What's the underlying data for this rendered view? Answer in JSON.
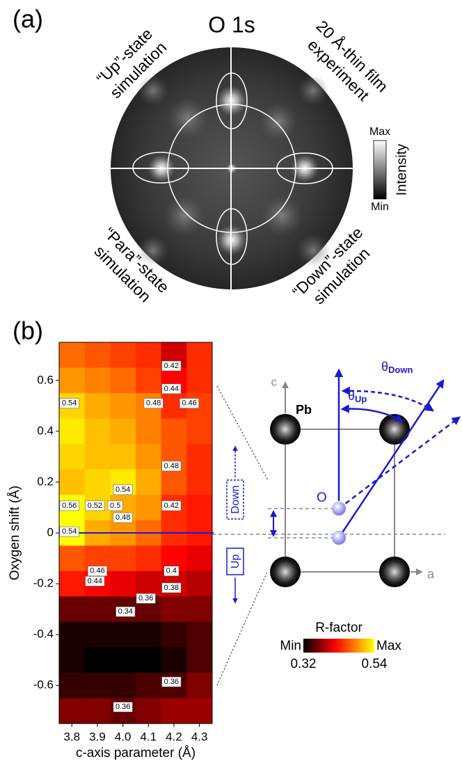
{
  "panel_a": {
    "label": "(a)",
    "title": "O 1s",
    "quadrants": {
      "upper_left": [
        "“Up”-state",
        "simulation"
      ],
      "upper_right": [
        "20 Å-thin film",
        "experiment"
      ],
      "lower_left": [
        "“Para”-state",
        "simulation"
      ],
      "lower_right": [
        "“Down”-state",
        "simulation"
      ]
    },
    "colorbar": {
      "max": "Max",
      "min": "Min",
      "label": "Intensity"
    }
  },
  "chart_data": {
    "type": "heatmap",
    "label": "(b)",
    "xlabel": "c-axis parameter (Å)",
    "ylabel": "Oxygen shift (Å)",
    "x": [
      3.8,
      3.9,
      4.0,
      4.1,
      4.2,
      4.3
    ],
    "y": [
      0.7,
      0.6,
      0.5,
      0.4,
      0.3,
      0.2,
      0.1,
      0,
      -0.1,
      -0.2,
      -0.3,
      -0.4,
      -0.5,
      -0.6,
      -0.7
    ],
    "z": [
      [
        0.47,
        0.46,
        0.45,
        0.44,
        0.4,
        0.44
      ],
      [
        0.49,
        0.48,
        0.47,
        0.45,
        0.42,
        0.44
      ],
      [
        0.52,
        0.5,
        0.49,
        0.48,
        0.44,
        0.45
      ],
      [
        0.53,
        0.51,
        0.5,
        0.48,
        0.46,
        0.45
      ],
      [
        0.52,
        0.51,
        0.51,
        0.49,
        0.46,
        0.44
      ],
      [
        0.51,
        0.52,
        0.53,
        0.5,
        0.46,
        0.44
      ],
      [
        0.54,
        0.52,
        0.5,
        0.49,
        0.44,
        0.43
      ],
      [
        0.54,
        0.5,
        0.49,
        0.47,
        0.44,
        0.43
      ],
      [
        0.46,
        0.45,
        0.45,
        0.44,
        0.42,
        0.41
      ],
      [
        0.43,
        0.42,
        0.41,
        0.4,
        0.4,
        0.39
      ],
      [
        0.36,
        0.36,
        0.36,
        0.36,
        0.37,
        0.37
      ],
      [
        0.33,
        0.33,
        0.33,
        0.33,
        0.34,
        0.35
      ],
      [
        0.33,
        0.32,
        0.32,
        0.32,
        0.33,
        0.35
      ],
      [
        0.34,
        0.34,
        0.34,
        0.35,
        0.35,
        0.37
      ],
      [
        0.37,
        0.37,
        0.36,
        0.37,
        0.38,
        0.38
      ]
    ],
    "xlim": [
      3.75,
      4.35
    ],
    "ylim": [
      -0.75,
      0.75
    ],
    "xticks": [
      3.8,
      3.9,
      {
        "value": 4,
        "label": "4.0"
      },
      4.1,
      4.2,
      4.3
    ],
    "yticks": [
      -0.6,
      -0.4,
      -0.2,
      0,
      0.2,
      0.4,
      0.6
    ],
    "contour_labels": [
      {
        "value": 0.42,
        "x": 4.19,
        "y": 0.657
      },
      {
        "value": 0.44,
        "x": 4.19,
        "y": 0.567
      },
      {
        "value": 0.48,
        "x": 4.12,
        "y": 0.51
      },
      {
        "value": 0.46,
        "x": 4.26,
        "y": 0.51
      },
      {
        "value": 0.54,
        "x": 3.79,
        "y": 0.51
      },
      {
        "value": 0.48,
        "x": 4.19,
        "y": 0.263
      },
      {
        "value": 0.54,
        "x": 4.0,
        "y": 0.17
      },
      {
        "value": 0.56,
        "x": 3.79,
        "y": 0.107
      },
      {
        "value": 0.52,
        "x": 3.89,
        "y": 0.107
      },
      {
        "value": 0.5,
        "x": 3.97,
        "y": 0.107
      },
      {
        "value": 0.48,
        "x": 4.0,
        "y": 0.06
      },
      {
        "value": 0.42,
        "x": 4.19,
        "y": 0.107
      },
      {
        "value": 0.54,
        "x": 3.79,
        "y": 0.005
      },
      {
        "value": 0.46,
        "x": 3.9,
        "y": -0.15
      },
      {
        "value": 0.44,
        "x": 3.89,
        "y": -0.19
      },
      {
        "value": 0.4,
        "x": 4.19,
        "y": -0.15
      },
      {
        "value": 0.38,
        "x": 4.19,
        "y": -0.216
      },
      {
        "value": 0.36,
        "x": 4.09,
        "y": -0.258
      },
      {
        "value": 0.34,
        "x": 4.01,
        "y": -0.31
      },
      {
        "value": 0.36,
        "x": 4.19,
        "y": -0.586
      },
      {
        "value": 0.36,
        "x": 4.0,
        "y": -0.685
      }
    ],
    "colorbar": {
      "label": "R-factor",
      "min_label": "Min",
      "max_label": "Max",
      "clim": [
        0.32,
        0.54
      ]
    }
  },
  "diagram": {
    "c": "c",
    "a": "a",
    "pb": "Pb",
    "o": "O",
    "theta_down": {
      "symbol": "θ",
      "sub": "Down"
    },
    "theta_up": {
      "symbol": "θ",
      "sub": "Up"
    },
    "down": "Down",
    "up": "Up"
  }
}
